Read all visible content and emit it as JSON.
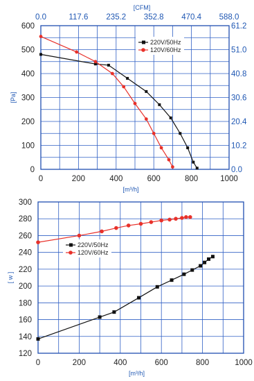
{
  "chart_data": [
    {
      "type": "line",
      "x_label": "[m³/h]",
      "y_label": "[Pa]",
      "secondary_x_label": "[CFM]",
      "x_ticks": [
        "0",
        "200",
        "400",
        "600",
        "800",
        "1000"
      ],
      "y_ticks": [
        "0",
        "100",
        "200",
        "300",
        "400",
        "500",
        "600"
      ],
      "top_ticks": [
        "0.0",
        "117.6",
        "235.2",
        "352.8",
        "470.4",
        "588.0"
      ],
      "right_ticks": [
        "0.0",
        "10.2",
        "20.4",
        "30.6",
        "40.8",
        "51.0",
        "61.2"
      ],
      "xlim": [
        0,
        1000
      ],
      "ylim": [
        0,
        600
      ],
      "grid": true,
      "legend_position": "top-right",
      "series": [
        {
          "name": "220V/50Hz",
          "color": "#111111",
          "marker": "square",
          "points": [
            [
              0,
              480
            ],
            [
              290,
              440
            ],
            [
              360,
              435
            ],
            [
              460,
              380
            ],
            [
              560,
              325
            ],
            [
              630,
              270
            ],
            [
              690,
              215
            ],
            [
              740,
              150
            ],
            [
              780,
              90
            ],
            [
              810,
              30
            ],
            [
              830,
              5
            ]
          ]
        },
        {
          "name": "120V/60Hz",
          "color": "#e8312a",
          "marker": "circle",
          "points": [
            [
              0,
              555
            ],
            [
              190,
              490
            ],
            [
              290,
              450
            ],
            [
              380,
              400
            ],
            [
              440,
              345
            ],
            [
              500,
              275
            ],
            [
              560,
              210
            ],
            [
              600,
              150
            ],
            [
              640,
              90
            ],
            [
              680,
              40
            ],
            [
              700,
              10
            ]
          ]
        }
      ]
    },
    {
      "type": "line",
      "x_label": "[m³/h]",
      "y_label": "[ w ]",
      "x_ticks": [
        "0",
        "200",
        "400",
        "600",
        "800",
        "1000"
      ],
      "y_ticks": [
        "120",
        "140",
        "160",
        "180",
        "200",
        "220",
        "240",
        "260",
        "280",
        "300"
      ],
      "xlim": [
        0,
        1000
      ],
      "ylim": [
        120,
        300
      ],
      "grid": true,
      "legend_position": "center-left",
      "series": [
        {
          "name": "220V/50Hz",
          "color": "#111111",
          "marker": "square",
          "points": [
            [
              0,
              137
            ],
            [
              300,
              163
            ],
            [
              370,
              169
            ],
            [
              490,
              186
            ],
            [
              580,
              199
            ],
            [
              650,
              207
            ],
            [
              710,
              214
            ],
            [
              750,
              219
            ],
            [
              790,
              224
            ],
            [
              810,
              228
            ],
            [
              830,
              232
            ],
            [
              850,
              235
            ]
          ]
        },
        {
          "name": "120V/60Hz",
          "color": "#e8312a",
          "marker": "circle",
          "points": [
            [
              0,
              252
            ],
            [
              200,
              260
            ],
            [
              310,
              265
            ],
            [
              380,
              269
            ],
            [
              440,
              272
            ],
            [
              500,
              274
            ],
            [
              550,
              276
            ],
            [
              600,
              278
            ],
            [
              640,
              279
            ],
            [
              670,
              280
            ],
            [
              700,
              281
            ],
            [
              720,
              282
            ],
            [
              740,
              282
            ]
          ]
        }
      ]
    }
  ]
}
